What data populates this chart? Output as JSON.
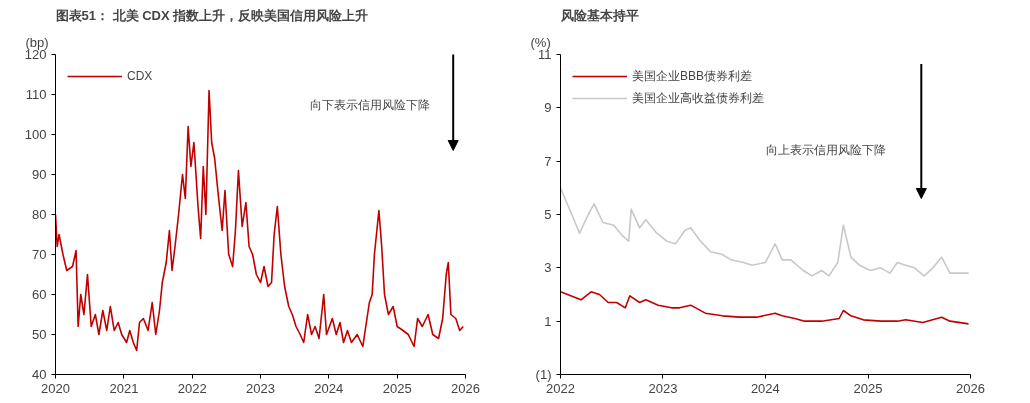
{
  "chart_data": [
    {
      "type": "line",
      "title": "图表51： 北美 CDX 指数上升，反映美国信用风险上升",
      "ylabel": "(bp)",
      "legend": "top",
      "grid": false,
      "annotations": [
        "向下表示信用风险下降"
      ],
      "xlim": [
        "2020-01-01",
        "2026-01-01"
      ],
      "xticks": [
        {
          "value": "2020-01-01",
          "label": "2020"
        },
        {
          "value": "2021-01-01",
          "label": "2021"
        },
        {
          "value": "2022-01-01",
          "label": "2022"
        },
        {
          "value": "2023-01-01",
          "label": "2023"
        },
        {
          "value": "2024-01-01",
          "label": "2024"
        },
        {
          "value": "2025-01-01",
          "label": "2025"
        },
        {
          "value": "2026-01-01",
          "label": "2026"
        }
      ],
      "ylim": [
        40,
        120
      ],
      "yticks": [
        40,
        50,
        60,
        70,
        80,
        90,
        100,
        110,
        120
      ],
      "x": [
        "2020-01-01",
        "2020-01-10",
        "2020-01-20",
        "2020-02-10",
        "2020-03-01",
        "2020-04-01",
        "2020-04-20",
        "2020-05-01",
        "2020-05-15",
        "2020-06-01",
        "2020-06-20",
        "2020-07-10",
        "2020-08-01",
        "2020-08-20",
        "2020-09-10",
        "2020-10-01",
        "2020-10-20",
        "2020-11-10",
        "2020-12-01",
        "2020-12-20",
        "2021-01-15",
        "2021-02-01",
        "2021-02-20",
        "2021-03-10",
        "2021-03-25",
        "2021-04-15",
        "2021-05-10",
        "2021-06-01",
        "2021-06-20",
        "2021-07-10",
        "2021-07-25",
        "2021-08-15",
        "2021-09-01",
        "2021-09-15",
        "2021-10-01",
        "2021-10-20",
        "2021-11-10",
        "2021-11-25",
        "2021-12-10",
        "2021-12-25",
        "2022-01-10",
        "2022-02-01",
        "2022-02-15",
        "2022-03-01",
        "2022-03-15",
        "2022-04-01",
        "2022-04-15",
        "2022-05-01",
        "2022-05-20",
        "2022-06-10",
        "2022-06-25",
        "2022-07-15",
        "2022-08-05",
        "2022-08-20",
        "2022-09-05",
        "2022-09-25",
        "2022-10-15",
        "2022-11-01",
        "2022-11-20",
        "2022-12-10",
        "2023-01-01",
        "2023-01-20",
        "2023-02-10",
        "2023-03-01",
        "2023-03-15",
        "2023-04-01",
        "2023-04-20",
        "2023-05-10",
        "2023-06-01",
        "2023-06-20",
        "2023-07-10",
        "2023-08-01",
        "2023-08-20",
        "2023-09-10",
        "2023-10-01",
        "2023-10-20",
        "2023-11-10",
        "2023-12-05",
        "2023-12-20",
        "2024-01-20",
        "2024-02-10",
        "2024-03-01",
        "2024-03-20",
        "2024-04-10",
        "2024-05-01",
        "2024-06-01",
        "2024-07-01",
        "2024-08-05",
        "2024-08-20",
        "2024-09-01",
        "2024-09-25",
        "2024-10-10",
        "2024-10-25",
        "2024-11-15",
        "2024-12-10",
        "2025-01-01",
        "2025-02-01",
        "2025-03-01",
        "2025-04-01",
        "2025-04-20",
        "2025-05-15",
        "2025-06-15",
        "2025-07-10",
        "2025-08-10",
        "2025-09-01",
        "2025-09-20",
        "2025-10-01",
        "2025-10-15",
        "2025-11-10",
        "2025-12-01",
        "2025-12-20"
      ],
      "series": [
        {
          "name": "CDX",
          "color": "#c00000",
          "values": [
            80,
            72,
            75,
            70,
            66,
            67,
            71,
            52,
            60,
            55,
            65,
            52,
            55,
            50,
            56,
            51,
            57,
            51,
            53,
            50,
            48,
            51,
            48,
            46,
            53,
            54,
            51,
            58,
            50,
            56,
            63,
            68,
            76,
            66,
            72,
            80,
            90,
            84,
            102,
            92,
            98,
            82,
            74,
            92,
            80,
            111,
            98,
            94,
            85,
            76,
            86,
            70,
            67,
            76,
            91,
            77,
            83,
            72,
            70,
            65,
            63,
            67,
            62,
            63,
            75,
            82,
            70,
            62,
            57,
            55,
            52,
            50,
            48,
            55,
            50,
            52,
            49,
            60,
            50,
            54,
            50,
            53,
            48,
            51,
            48,
            50,
            47,
            58,
            60,
            70,
            81,
            72,
            60,
            55,
            57,
            52,
            51,
            50,
            47,
            54,
            52,
            55,
            50,
            49,
            54,
            65,
            68,
            55,
            54,
            51,
            52
          ]
        }
      ]
    },
    {
      "type": "line",
      "title": "风险基本持平",
      "ylabel": "(%)",
      "legend": "top",
      "grid": false,
      "annotations": [
        "向上表示信用风险下降"
      ],
      "xlim": [
        "2022-01-01",
        "2026-01-01"
      ],
      "xticks": [
        {
          "value": "2022-01-01",
          "label": "2022"
        },
        {
          "value": "2023-01-01",
          "label": "2023"
        },
        {
          "value": "2024-01-01",
          "label": "2024"
        },
        {
          "value": "2025-01-01",
          "label": "2025"
        },
        {
          "value": "2026-01-01",
          "label": "2026"
        }
      ],
      "ylim": [
        -1,
        11
      ],
      "yticks": [
        {
          "value": -1,
          "label": "(1)"
        },
        1,
        3,
        5,
        7,
        9,
        11
      ],
      "series": [
        {
          "name": "美国企业BBB债券利差",
          "color": "#c00000",
          "x": [
            "2022-01-01",
            "2022-02-20",
            "2022-03-15",
            "2022-04-20",
            "2022-05-20",
            "2022-06-20",
            "2022-07-20",
            "2022-08-20",
            "2022-09-05",
            "2022-10-10",
            "2022-11-01",
            "2022-12-15",
            "2023-02-01",
            "2023-03-01",
            "2023-04-10",
            "2023-06-01",
            "2023-08-01",
            "2023-10-01",
            "2023-12-01",
            "2024-02-05",
            "2024-03-01",
            "2024-04-15",
            "2024-05-20",
            "2024-07-20",
            "2024-09-20",
            "2024-10-05",
            "2024-11-01",
            "2024-12-15",
            "2025-02-15",
            "2025-04-15",
            "2025-05-15",
            "2025-07-15",
            "2025-09-20",
            "2025-10-20",
            "2025-12-25"
          ],
          "values": [
            2.1,
            1.9,
            1.8,
            2.1,
            2.0,
            1.7,
            1.7,
            1.5,
            1.95,
            1.7,
            1.8,
            1.6,
            1.5,
            1.5,
            1.6,
            1.3,
            1.2,
            1.15,
            1.15,
            1.3,
            1.2,
            1.1,
            1.0,
            1.0,
            1.1,
            1.4,
            1.2,
            1.05,
            1.0,
            1.0,
            1.05,
            0.95,
            1.15,
            1.0,
            0.9
          ]
        },
        {
          "name": "美国企业高收益债券利差",
          "color": "#c8c8c8",
          "x": [
            "2022-01-01",
            "2022-02-10",
            "2022-03-10",
            "2022-04-10",
            "2022-05-01",
            "2022-06-01",
            "2022-07-10",
            "2022-08-10",
            "2022-09-01",
            "2022-09-10",
            "2022-10-10",
            "2022-11-01",
            "2022-12-10",
            "2023-01-15",
            "2023-02-15",
            "2023-03-20",
            "2023-04-10",
            "2023-05-15",
            "2023-06-20",
            "2023-08-01",
            "2023-09-01",
            "2023-10-15",
            "2023-11-15",
            "2024-01-01",
            "2024-02-05",
            "2024-03-01",
            "2024-04-01",
            "2024-05-15",
            "2024-06-15",
            "2024-07-20",
            "2024-08-15",
            "2024-09-15",
            "2024-10-05",
            "2024-11-01",
            "2024-12-01",
            "2025-01-10",
            "2025-02-15",
            "2025-03-20",
            "2025-04-15",
            "2025-05-15",
            "2025-06-15",
            "2025-07-20",
            "2025-08-20",
            "2025-09-20",
            "2025-10-20",
            "2025-12-25"
          ],
          "values": [
            6.0,
            5.0,
            4.3,
            5.0,
            5.4,
            4.7,
            4.6,
            4.2,
            4.0,
            5.2,
            4.5,
            4.8,
            4.3,
            4.0,
            3.9,
            4.4,
            4.5,
            4.0,
            3.6,
            3.5,
            3.3,
            3.2,
            3.1,
            3.2,
            3.9,
            3.3,
            3.3,
            2.9,
            2.7,
            2.9,
            2.7,
            3.2,
            4.6,
            3.4,
            3.1,
            2.9,
            3.0,
            2.8,
            3.2,
            3.1,
            3.0,
            2.7,
            3.0,
            3.4,
            2.8,
            2.8
          ]
        }
      ]
    }
  ]
}
